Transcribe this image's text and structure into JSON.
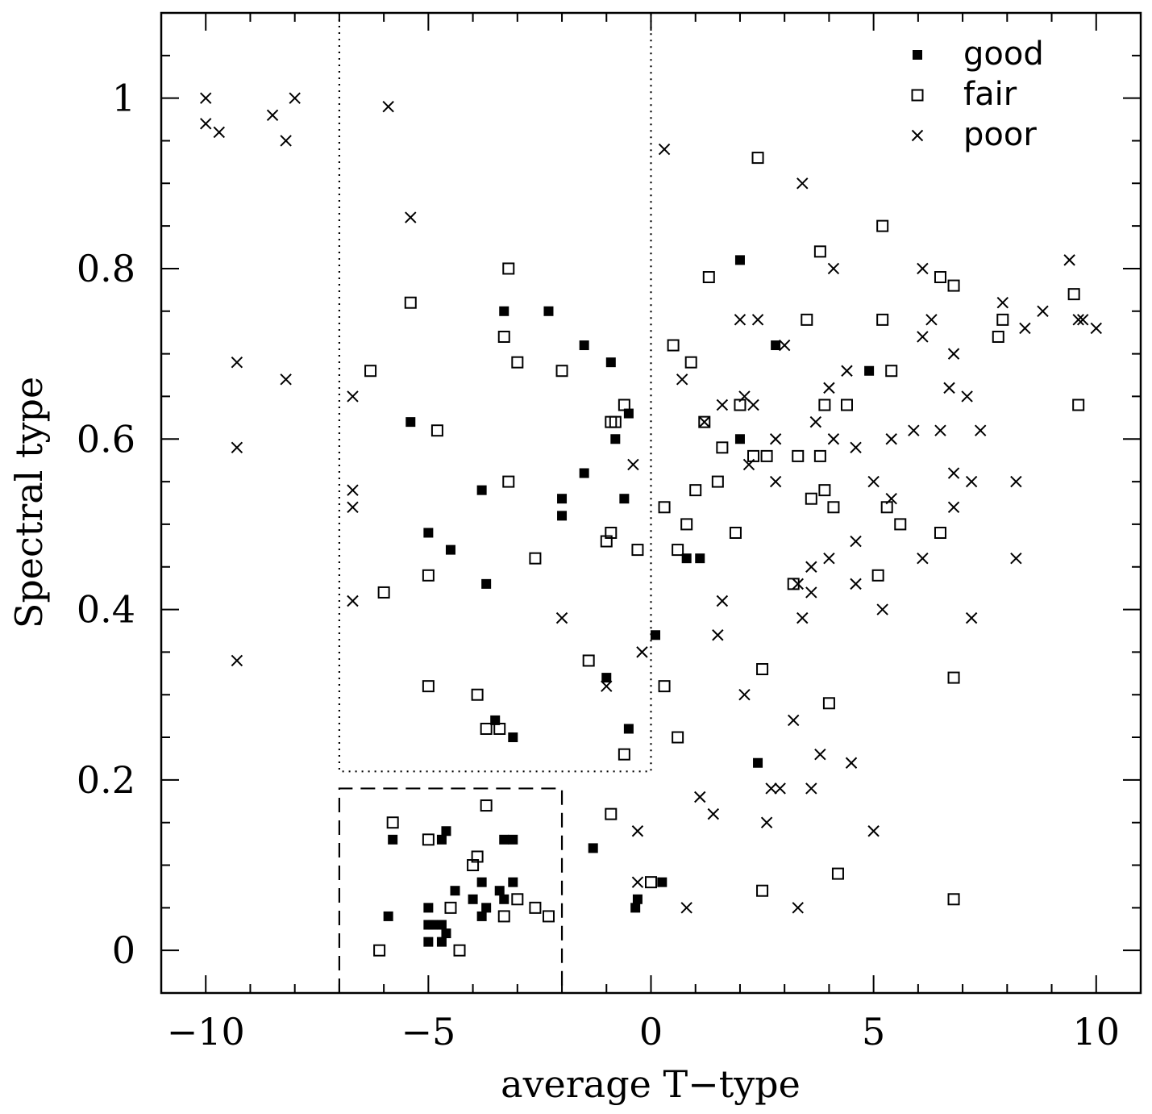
{
  "chart_data": {
    "type": "scatter",
    "title": "",
    "xlabel": "average T−type",
    "ylabel": "Spectral type",
    "xlim": [
      -11,
      11
    ],
    "ylim": [
      -0.05,
      1.1
    ],
    "x_ticks": [
      {
        "value": -10,
        "label": "−10"
      },
      {
        "value": -5,
        "label": "−5"
      },
      {
        "value": 0,
        "label": "0"
      },
      {
        "value": 5,
        "label": "5"
      },
      {
        "value": 10,
        "label": "10"
      }
    ],
    "y_ticks": [
      {
        "value": 0,
        "label": "0"
      },
      {
        "value": 0.2,
        "label": "0.2"
      },
      {
        "value": 0.4,
        "label": "0.4"
      },
      {
        "value": 0.6,
        "label": "0.6"
      },
      {
        "value": 0.8,
        "label": "0.8"
      },
      {
        "value": 1,
        "label": "1"
      }
    ],
    "x_minor_step": 1,
    "y_minor_step": 0.05,
    "legend": {
      "position": "top-right"
    },
    "regions": [
      {
        "name": "dotted-box",
        "style": "dotted",
        "x": [
          -7,
          0
        ],
        "y": [
          0.21,
          1.1
        ]
      },
      {
        "name": "dashed-box",
        "style": "dashed",
        "x": [
          -7,
          -2
        ],
        "y": [
          -0.05,
          0.19
        ]
      }
    ],
    "series": [
      {
        "name": "good",
        "marker": "filled-square",
        "points": [
          [
            -3.3,
            0.75
          ],
          [
            -2.3,
            0.75
          ],
          [
            -1.5,
            0.71
          ],
          [
            -0.9,
            0.69
          ],
          [
            -0.5,
            0.63
          ],
          [
            -5.4,
            0.62
          ],
          [
            -0.8,
            0.6
          ],
          [
            -1.5,
            0.56
          ],
          [
            -3.8,
            0.54
          ],
          [
            -2,
            0.53
          ],
          [
            -0.6,
            0.53
          ],
          [
            -2,
            0.51
          ],
          [
            -5,
            0.49
          ],
          [
            -4.5,
            0.47
          ],
          [
            -3.7,
            0.43
          ],
          [
            -1,
            0.32
          ],
          [
            -3.5,
            0.27
          ],
          [
            -3.1,
            0.25
          ],
          [
            -0.5,
            0.26
          ],
          [
            0.1,
            0.37
          ],
          [
            0.8,
            0.46
          ],
          [
            1.1,
            0.46
          ],
          [
            2,
            0.81
          ],
          [
            2.8,
            0.71
          ],
          [
            2,
            0.6
          ],
          [
            4.9,
            0.68
          ],
          [
            2.4,
            0.22
          ],
          [
            -5.8,
            0.13
          ],
          [
            -4.7,
            0.13
          ],
          [
            -4.6,
            0.14
          ],
          [
            -3.3,
            0.13
          ],
          [
            -3.1,
            0.13
          ],
          [
            -1.3,
            0.12
          ],
          [
            -3.8,
            0.08
          ],
          [
            -3.1,
            0.08
          ],
          [
            -4.4,
            0.07
          ],
          [
            -3.4,
            0.07
          ],
          [
            -4,
            0.06
          ],
          [
            -3.3,
            0.06
          ],
          [
            -5,
            0.05
          ],
          [
            -3.7,
            0.05
          ],
          [
            -5.9,
            0.04
          ],
          [
            -3.8,
            0.04
          ],
          [
            -5,
            0.03
          ],
          [
            -4.7,
            0.03
          ],
          [
            -4.9,
            0.03
          ],
          [
            -4.6,
            0.02
          ],
          [
            -5,
            0.01
          ],
          [
            -4.7,
            0.01
          ],
          [
            0.25,
            0.08
          ],
          [
            -0.3,
            0.06
          ],
          [
            -0.35,
            0.05
          ]
        ]
      },
      {
        "name": "fair",
        "marker": "open-square",
        "points": [
          [
            -3.2,
            0.8
          ],
          [
            -5.4,
            0.76
          ],
          [
            -3.3,
            0.72
          ],
          [
            -3,
            0.69
          ],
          [
            -2,
            0.68
          ],
          [
            -6.3,
            0.68
          ],
          [
            -0.6,
            0.64
          ],
          [
            -0.9,
            0.62
          ],
          [
            -0.8,
            0.62
          ],
          [
            -4.8,
            0.61
          ],
          [
            -3.2,
            0.55
          ],
          [
            -0.9,
            0.49
          ],
          [
            -1,
            0.48
          ],
          [
            -0.3,
            0.47
          ],
          [
            -2.6,
            0.46
          ],
          [
            -5,
            0.44
          ],
          [
            -6,
            0.42
          ],
          [
            -1.4,
            0.34
          ],
          [
            -5,
            0.31
          ],
          [
            -3.9,
            0.3
          ],
          [
            -3.7,
            0.26
          ],
          [
            -3.4,
            0.26
          ],
          [
            -0.6,
            0.23
          ],
          [
            0.3,
            0.52
          ],
          [
            0.3,
            0.31
          ],
          [
            0.6,
            0.47
          ],
          [
            0.8,
            0.5
          ],
          [
            0.5,
            0.71
          ],
          [
            0.9,
            0.69
          ],
          [
            1,
            0.54
          ],
          [
            1.3,
            0.79
          ],
          [
            1.2,
            0.62
          ],
          [
            1.6,
            0.59
          ],
          [
            1.5,
            0.55
          ],
          [
            1.9,
            0.49
          ],
          [
            2,
            0.64
          ],
          [
            2.3,
            0.58
          ],
          [
            2.6,
            0.58
          ],
          [
            2.4,
            0.93
          ],
          [
            3.3,
            0.58
          ],
          [
            3.5,
            0.74
          ],
          [
            3.8,
            0.82
          ],
          [
            3.9,
            0.64
          ],
          [
            3.8,
            0.58
          ],
          [
            3.9,
            0.54
          ],
          [
            3.6,
            0.53
          ],
          [
            4.1,
            0.52
          ],
          [
            4.4,
            0.64
          ],
          [
            3.2,
            0.43
          ],
          [
            0.6,
            0.25
          ],
          [
            2.5,
            0.33
          ],
          [
            4,
            0.29
          ],
          [
            5.2,
            0.85
          ],
          [
            5.2,
            0.74
          ],
          [
            5.4,
            0.68
          ],
          [
            5.3,
            0.52
          ],
          [
            5.6,
            0.5
          ],
          [
            5.1,
            0.44
          ],
          [
            6.5,
            0.79
          ],
          [
            6.8,
            0.78
          ],
          [
            6.5,
            0.49
          ],
          [
            6.8,
            0.32
          ],
          [
            7.8,
            0.72
          ],
          [
            7.9,
            0.74
          ],
          [
            9.5,
            0.77
          ],
          [
            9.6,
            0.64
          ],
          [
            -0.9,
            0.16
          ],
          [
            0,
            0.08
          ],
          [
            2.5,
            0.07
          ],
          [
            4.2,
            0.09
          ],
          [
            6.8,
            0.06
          ],
          [
            -5.8,
            0.15
          ],
          [
            -5,
            0.13
          ],
          [
            -3.7,
            0.17
          ],
          [
            -3.9,
            0.11
          ],
          [
            -4,
            0.1
          ],
          [
            -4.5,
            0.05
          ],
          [
            -3.3,
            0.04
          ],
          [
            -3,
            0.06
          ],
          [
            -2.6,
            0.05
          ],
          [
            -2.3,
            0.04
          ],
          [
            -6.1,
            0
          ],
          [
            -4.3,
            0
          ]
        ]
      },
      {
        "name": "poor",
        "marker": "cross",
        "points": [
          [
            -10,
            1
          ],
          [
            -10,
            0.97
          ],
          [
            -9.7,
            0.96
          ],
          [
            -8.5,
            0.98
          ],
          [
            -8.2,
            0.95
          ],
          [
            -8,
            1
          ],
          [
            -9.3,
            0.69
          ],
          [
            -8.2,
            0.67
          ],
          [
            -9.3,
            0.59
          ],
          [
            -9.3,
            0.34
          ],
          [
            -5.9,
            0.99
          ],
          [
            -5.4,
            0.86
          ],
          [
            -6.7,
            0.65
          ],
          [
            -6.7,
            0.54
          ],
          [
            -6.7,
            0.52
          ],
          [
            -6.7,
            0.41
          ],
          [
            -2,
            0.39
          ],
          [
            -0.4,
            0.57
          ],
          [
            -0.2,
            0.35
          ],
          [
            -1,
            0.31
          ],
          [
            0.3,
            0.94
          ],
          [
            0.7,
            0.67
          ],
          [
            1.2,
            0.62
          ],
          [
            1.6,
            0.64
          ],
          [
            2,
            0.74
          ],
          [
            2.4,
            0.74
          ],
          [
            2.1,
            0.65
          ],
          [
            2.3,
            0.64
          ],
          [
            2.2,
            0.57
          ],
          [
            2.8,
            0.6
          ],
          [
            2.8,
            0.55
          ],
          [
            3,
            0.71
          ],
          [
            1.6,
            0.41
          ],
          [
            1.5,
            0.37
          ],
          [
            2.1,
            0.3
          ],
          [
            3.4,
            0.9
          ],
          [
            3.7,
            0.62
          ],
          [
            4.1,
            0.8
          ],
          [
            4,
            0.66
          ],
          [
            4.4,
            0.68
          ],
          [
            4.1,
            0.6
          ],
          [
            4,
            0.46
          ],
          [
            3.6,
            0.45
          ],
          [
            3.6,
            0.42
          ],
          [
            3.3,
            0.43
          ],
          [
            3.4,
            0.39
          ],
          [
            4.6,
            0.59
          ],
          [
            4.6,
            0.48
          ],
          [
            4.6,
            0.43
          ],
          [
            5,
            0.55
          ],
          [
            5.4,
            0.6
          ],
          [
            5.4,
            0.53
          ],
          [
            5.2,
            0.4
          ],
          [
            5.9,
            0.61
          ],
          [
            6.1,
            0.8
          ],
          [
            6.3,
            0.74
          ],
          [
            6.1,
            0.72
          ],
          [
            6.5,
            0.61
          ],
          [
            6.1,
            0.46
          ],
          [
            6.8,
            0.7
          ],
          [
            6.7,
            0.66
          ],
          [
            6.8,
            0.56
          ],
          [
            6.8,
            0.52
          ],
          [
            7.1,
            0.65
          ],
          [
            7.2,
            0.55
          ],
          [
            7.4,
            0.61
          ],
          [
            7.2,
            0.39
          ],
          [
            7.9,
            0.76
          ],
          [
            8.4,
            0.73
          ],
          [
            8.8,
            0.75
          ],
          [
            8.2,
            0.55
          ],
          [
            8.2,
            0.46
          ],
          [
            9.4,
            0.81
          ],
          [
            9.6,
            0.74
          ],
          [
            9.7,
            0.74
          ],
          [
            10,
            0.73
          ],
          [
            3.2,
            0.27
          ],
          [
            3.8,
            0.23
          ],
          [
            4.5,
            0.22
          ],
          [
            3.6,
            0.19
          ],
          [
            2.7,
            0.19
          ],
          [
            2.9,
            0.19
          ],
          [
            2.6,
            0.15
          ],
          [
            3.3,
            0.05
          ],
          [
            5,
            0.14
          ],
          [
            1.1,
            0.18
          ],
          [
            1.4,
            0.16
          ],
          [
            0.8,
            0.05
          ],
          [
            -0.3,
            0.14
          ],
          [
            -0.3,
            0.08
          ]
        ]
      }
    ]
  }
}
